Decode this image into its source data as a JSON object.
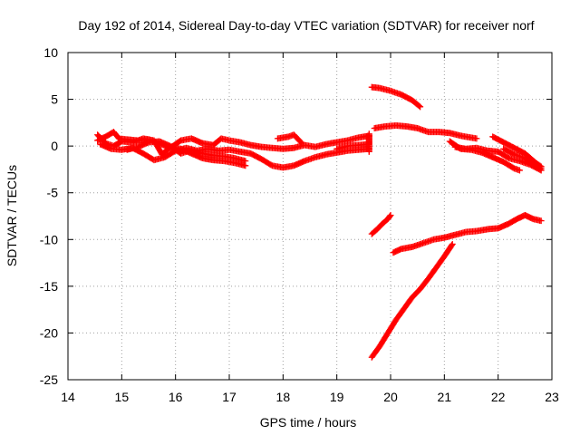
{
  "chart_data": {
    "type": "scatter",
    "title": "Day 192 of 2014, Sidereal Day-to-day VTEC variation (SDTVAR) for receiver norf",
    "xlabel": "GPS time / hours",
    "ylabel": "SDTVAR / TECUs",
    "xlim": [
      14,
      23
    ],
    "ylim": [
      -25,
      10
    ],
    "x_ticks": [
      14,
      15,
      16,
      17,
      18,
      19,
      20,
      21,
      22,
      23
    ],
    "y_ticks": [
      -25,
      -20,
      -15,
      -10,
      -5,
      0,
      5,
      10
    ],
    "grid": true,
    "marker": "plus",
    "color": "#ff0000",
    "series": [
      {
        "points": [
          [
            14.55,
            0.6
          ],
          [
            14.7,
            1.0
          ],
          [
            14.85,
            1.5
          ],
          [
            14.95,
            0.8
          ],
          [
            15.1,
            0.7
          ],
          [
            15.3,
            0.6
          ],
          [
            15.5,
            0.7
          ],
          [
            15.7,
            0.3
          ],
          [
            15.9,
            -0.2
          ],
          [
            16.1,
            0.6
          ],
          [
            16.3,
            0.8
          ],
          [
            16.5,
            0.3
          ],
          [
            16.7,
            0.1
          ],
          [
            16.85,
            0.8
          ],
          [
            17.0,
            0.6
          ],
          [
            17.2,
            0.4
          ],
          [
            17.4,
            0.1
          ],
          [
            17.6,
            -0.1
          ],
          [
            17.8,
            -0.2
          ],
          [
            18.0,
            -0.3
          ],
          [
            18.2,
            -0.2
          ],
          [
            18.4,
            0.1
          ],
          [
            18.6,
            -0.1
          ],
          [
            18.8,
            0.2
          ],
          [
            19.0,
            0.4
          ],
          [
            19.2,
            0.6
          ],
          [
            19.4,
            0.9
          ],
          [
            19.6,
            1.1
          ]
        ]
      },
      {
        "points": [
          [
            14.55,
            1.2
          ],
          [
            14.7,
            0.3
          ],
          [
            14.85,
            0.0
          ],
          [
            15.0,
            0.5
          ],
          [
            15.2,
            0.4
          ],
          [
            15.4,
            0.8
          ],
          [
            15.6,
            0.6
          ],
          [
            15.75,
            -0.9
          ],
          [
            15.9,
            -0.1
          ],
          [
            16.1,
            -0.3
          ],
          [
            16.3,
            -0.8
          ],
          [
            16.5,
            -1.3
          ],
          [
            16.7,
            -1.5
          ],
          [
            16.9,
            -1.6
          ],
          [
            17.1,
            -1.8
          ],
          [
            17.3,
            -2.1
          ]
        ]
      },
      {
        "points": [
          [
            14.6,
            0.2
          ],
          [
            14.8,
            -0.3
          ],
          [
            15.0,
            -0.4
          ],
          [
            15.2,
            -0.2
          ],
          [
            15.4,
            -0.8
          ],
          [
            15.6,
            -1.5
          ],
          [
            15.8,
            -1.2
          ],
          [
            16.0,
            -0.5
          ],
          [
            16.2,
            -0.2
          ],
          [
            16.4,
            -0.5
          ],
          [
            16.6,
            -0.3
          ],
          [
            16.8,
            -0.5
          ],
          [
            17.0,
            -0.4
          ],
          [
            17.2,
            -0.6
          ],
          [
            17.4,
            -0.8
          ],
          [
            17.6,
            -1.4
          ],
          [
            17.8,
            -2.1
          ],
          [
            18.0,
            -2.3
          ],
          [
            18.2,
            -2.1
          ],
          [
            18.4,
            -1.6
          ],
          [
            18.6,
            -1.2
          ],
          [
            18.8,
            -0.9
          ],
          [
            19.0,
            -0.7
          ],
          [
            19.2,
            -0.5
          ],
          [
            19.4,
            -0.4
          ],
          [
            19.6,
            -0.3
          ]
        ]
      },
      {
        "points": [
          [
            15.1,
            -0.4
          ],
          [
            15.3,
            -0.1
          ],
          [
            15.5,
            0.4
          ],
          [
            15.7,
            0.5
          ],
          [
            15.9,
            0.0
          ],
          [
            16.1,
            -0.8
          ],
          [
            16.3,
            -0.4
          ],
          [
            16.5,
            -0.8
          ],
          [
            16.7,
            -1.0
          ],
          [
            16.9,
            -1.1
          ],
          [
            17.1,
            -1.3
          ],
          [
            17.3,
            -1.6
          ]
        ]
      },
      {
        "points": [
          [
            17.9,
            0.8
          ],
          [
            18.1,
            1.0
          ],
          [
            18.2,
            1.2
          ],
          [
            18.35,
            0.3
          ]
        ]
      },
      {
        "points": [
          [
            19.0,
            -0.3
          ],
          [
            19.2,
            0.0
          ],
          [
            19.4,
            0.1
          ],
          [
            19.6,
            0.2
          ],
          [
            19.6,
            1.3
          ],
          [
            19.6,
            -0.6
          ]
        ]
      },
      {
        "points": [
          [
            19.65,
            6.3
          ],
          [
            19.8,
            6.2
          ],
          [
            20.0,
            5.9
          ],
          [
            20.2,
            5.5
          ],
          [
            20.4,
            4.9
          ],
          [
            20.55,
            4.2
          ]
        ]
      },
      {
        "points": [
          [
            19.7,
            1.9
          ],
          [
            19.9,
            2.1
          ],
          [
            20.1,
            2.2
          ],
          [
            20.3,
            2.1
          ],
          [
            20.5,
            1.9
          ],
          [
            20.7,
            1.5
          ],
          [
            20.9,
            1.5
          ],
          [
            21.1,
            1.4
          ],
          [
            21.3,
            1.1
          ],
          [
            21.5,
            0.9
          ],
          [
            21.6,
            0.8
          ]
        ]
      },
      {
        "points": [
          [
            21.1,
            0.5
          ],
          [
            21.3,
            -0.3
          ],
          [
            21.5,
            -0.4
          ],
          [
            21.7,
            -0.7
          ],
          [
            21.9,
            -1.2
          ],
          [
            22.1,
            -1.7
          ],
          [
            22.3,
            -2.4
          ],
          [
            22.4,
            -2.6
          ]
        ]
      },
      {
        "points": [
          [
            21.2,
            -0.1
          ],
          [
            21.4,
            -0.3
          ],
          [
            21.6,
            -0.2
          ],
          [
            21.8,
            -0.5
          ],
          [
            22.0,
            -0.6
          ],
          [
            22.2,
            -1.3
          ],
          [
            22.4,
            -1.6
          ],
          [
            22.6,
            -2.0
          ],
          [
            22.8,
            -2.6
          ]
        ]
      },
      {
        "points": [
          [
            21.9,
            1.0
          ],
          [
            22.1,
            0.4
          ],
          [
            22.3,
            -0.2
          ],
          [
            22.5,
            -0.8
          ],
          [
            22.7,
            -1.8
          ],
          [
            22.8,
            -2.2
          ]
        ]
      },
      {
        "points": [
          [
            22.1,
            -0.3
          ],
          [
            22.3,
            -0.9
          ],
          [
            22.5,
            -1.3
          ],
          [
            22.7,
            -2.2
          ],
          [
            22.8,
            -2.4
          ]
        ]
      },
      {
        "points": [
          [
            19.65,
            -9.4
          ],
          [
            19.75,
            -8.9
          ],
          [
            19.85,
            -8.3
          ],
          [
            19.95,
            -7.8
          ],
          [
            20.0,
            -7.4
          ]
        ]
      },
      {
        "points": [
          [
            20.05,
            -11.4
          ],
          [
            20.2,
            -11.0
          ],
          [
            20.4,
            -10.8
          ],
          [
            20.6,
            -10.4
          ],
          [
            20.8,
            -10.0
          ],
          [
            21.0,
            -9.8
          ],
          [
            21.2,
            -9.5
          ],
          [
            21.4,
            -9.2
          ],
          [
            21.6,
            -9.1
          ],
          [
            21.8,
            -8.9
          ],
          [
            22.0,
            -8.8
          ],
          [
            22.2,
            -8.3
          ],
          [
            22.35,
            -7.8
          ],
          [
            22.5,
            -7.4
          ],
          [
            22.65,
            -7.8
          ],
          [
            22.8,
            -8.0
          ]
        ]
      },
      {
        "points": [
          [
            19.65,
            -22.6
          ],
          [
            19.8,
            -21.4
          ],
          [
            19.95,
            -20.0
          ],
          [
            20.1,
            -18.6
          ],
          [
            20.25,
            -17.4
          ],
          [
            20.4,
            -16.2
          ],
          [
            20.55,
            -15.3
          ],
          [
            20.7,
            -14.2
          ],
          [
            20.85,
            -13.0
          ],
          [
            21.0,
            -11.8
          ],
          [
            21.15,
            -10.5
          ]
        ]
      }
    ]
  }
}
